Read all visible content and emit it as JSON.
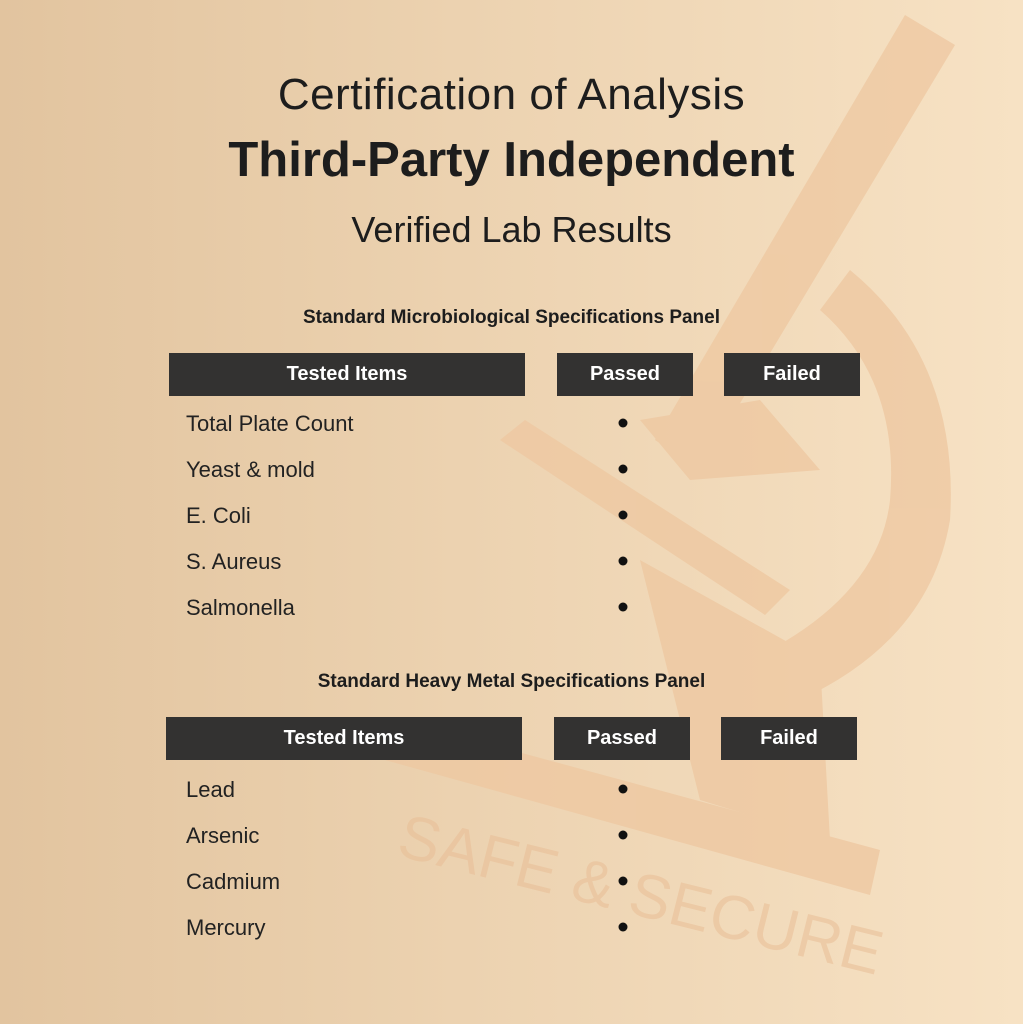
{
  "header": {
    "title": "Certification of Analysis",
    "subtitle": "Third-Party Independent",
    "tagline": "Verified Lab Results"
  },
  "watermark": {
    "text": "SAFE & SECURE",
    "icon": "microscope-icon",
    "color": "#eec7a0"
  },
  "colors": {
    "header_bg": "#333231",
    "header_text": "#ffffff"
  },
  "panels": [
    {
      "title": "Standard Microbiological Specifications Panel",
      "columns": [
        "Tested Items",
        "Passed",
        "Failed"
      ],
      "rows": [
        {
          "item": "Total Plate Count",
          "result": "passed"
        },
        {
          "item": "Yeast & mold",
          "result": "passed"
        },
        {
          "item": "E. Coli",
          "result": "passed"
        },
        {
          "item": "S. Aureus",
          "result": "passed"
        },
        {
          "item": "Salmonella",
          "result": "passed"
        }
      ]
    },
    {
      "title": "Standard Heavy Metal Specifications Panel",
      "columns": [
        "Tested Items",
        "Passed",
        "Failed"
      ],
      "rows": [
        {
          "item": "Lead",
          "result": "passed"
        },
        {
          "item": "Arsenic",
          "result": "passed"
        },
        {
          "item": "Cadmium",
          "result": "passed"
        },
        {
          "item": "Mercury",
          "result": "passed"
        }
      ]
    }
  ]
}
